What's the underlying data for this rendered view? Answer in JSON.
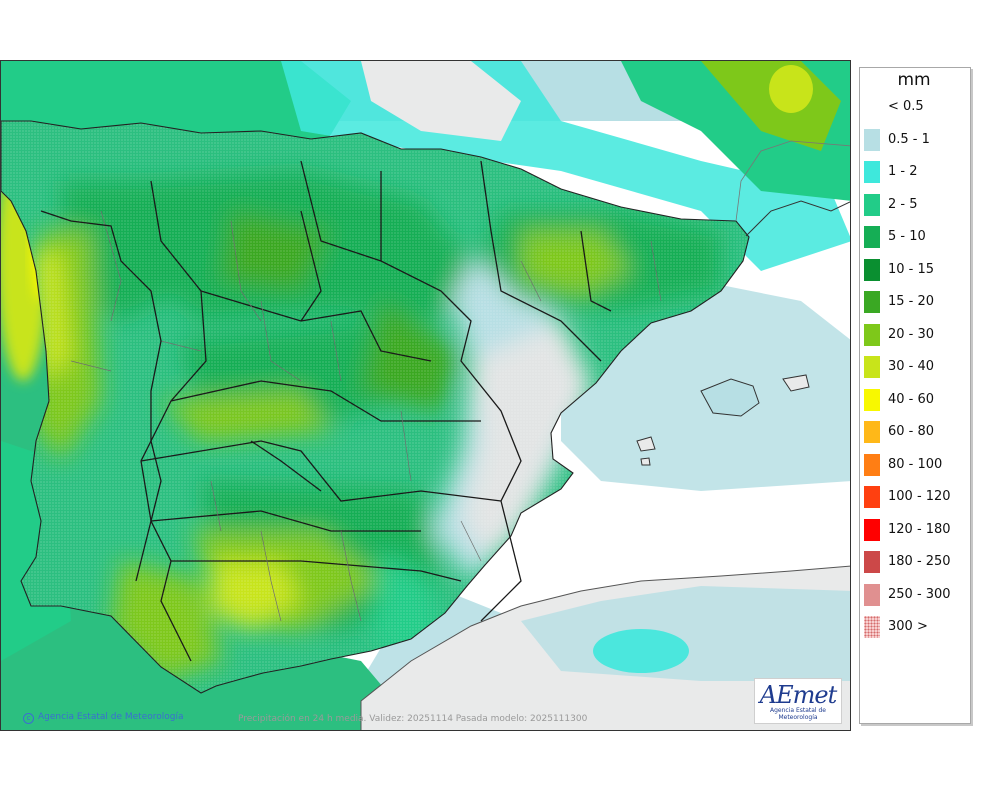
{
  "map": {
    "caption": "Precipitación en 24 h media. Validez: 20251114 Pasada modelo: 2025111300",
    "credit": "Agencia Estatal de Meteorología",
    "logo": {
      "mark": "AEmet",
      "subtitle": "Agencia Estatal de Meteorología"
    }
  },
  "legend": {
    "title": "mm",
    "items": [
      {
        "label": "< 0.5",
        "color": "#ffffff"
      },
      {
        "label": "0.5 - 1",
        "color": "#b7dfe4"
      },
      {
        "label": "1 - 2",
        "color": "#3ee8dc"
      },
      {
        "label": "2 - 5",
        "color": "#22cc88"
      },
      {
        "label": "5 - 10",
        "color": "#15ae55"
      },
      {
        "label": "10 - 15",
        "color": "#0a8f30"
      },
      {
        "label": "15 - 20",
        "color": "#3aa823"
      },
      {
        "label": "20 - 30",
        "color": "#7ec81a"
      },
      {
        "label": "30 - 40",
        "color": "#c8e41a"
      },
      {
        "label": "40 - 60",
        "color": "#f8f800"
      },
      {
        "label": "60 - 80",
        "color": "#ffb818"
      },
      {
        "label": "80 - 100",
        "color": "#ff7e14"
      },
      {
        "label": "100 - 120",
        "color": "#ff4010"
      },
      {
        "label": "120 - 180",
        "color": "#ff0000"
      },
      {
        "label": "180 - 250",
        "color": "#cc4848"
      },
      {
        "label": "250 - 300",
        "color": "#e09090"
      },
      {
        "label": "300 >",
        "color": "#f8d0d0"
      }
    ]
  }
}
